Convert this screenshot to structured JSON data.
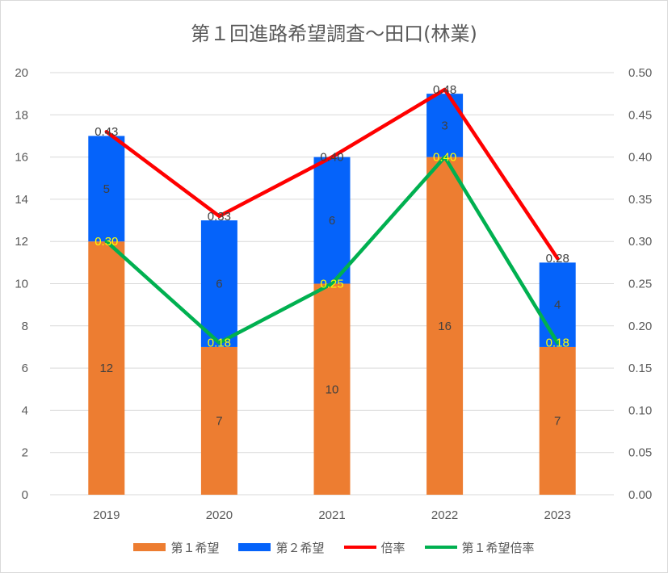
{
  "title": "第１回進路希望調査～田口(林業)",
  "legend": [
    "第１希望",
    "第２希望",
    "倍率",
    "第１希望倍率"
  ],
  "colors": {
    "first_choice": "#ED7D31",
    "second_choice": "#0563FA",
    "ratio": "#FF0000",
    "first_ratio": "#00B050",
    "first_ratio_label": "#FFFF00"
  },
  "chart_data": {
    "type": "bar",
    "stacked": true,
    "categories": [
      "2019",
      "2020",
      "2021",
      "2022",
      "2023"
    ],
    "series": [
      {
        "name": "第１希望",
        "type": "bar",
        "axis": "left",
        "values": [
          12,
          7,
          10,
          16,
          7
        ]
      },
      {
        "name": "第２希望",
        "type": "bar",
        "axis": "left",
        "values": [
          5,
          6,
          6,
          3,
          4
        ]
      },
      {
        "name": "倍率",
        "type": "line",
        "axis": "right",
        "values": [
          0.43,
          0.33,
          0.4,
          0.48,
          0.28
        ]
      },
      {
        "name": "第１希望倍率",
        "type": "line",
        "axis": "right",
        "values": [
          0.3,
          0.18,
          0.25,
          0.4,
          0.18
        ]
      }
    ],
    "ylim": [
      0,
      20
    ],
    "yticks": [
      "0",
      "2",
      "4",
      "6",
      "8",
      "10",
      "12",
      "14",
      "16",
      "18",
      "20"
    ],
    "y2lim": [
      0,
      0.5
    ],
    "y2ticks": [
      "0.00",
      "0.05",
      "0.10",
      "0.15",
      "0.20",
      "0.25",
      "0.30",
      "0.35",
      "0.40",
      "0.45",
      "0.50"
    ],
    "grid": true,
    "legend_position": "bottom"
  }
}
